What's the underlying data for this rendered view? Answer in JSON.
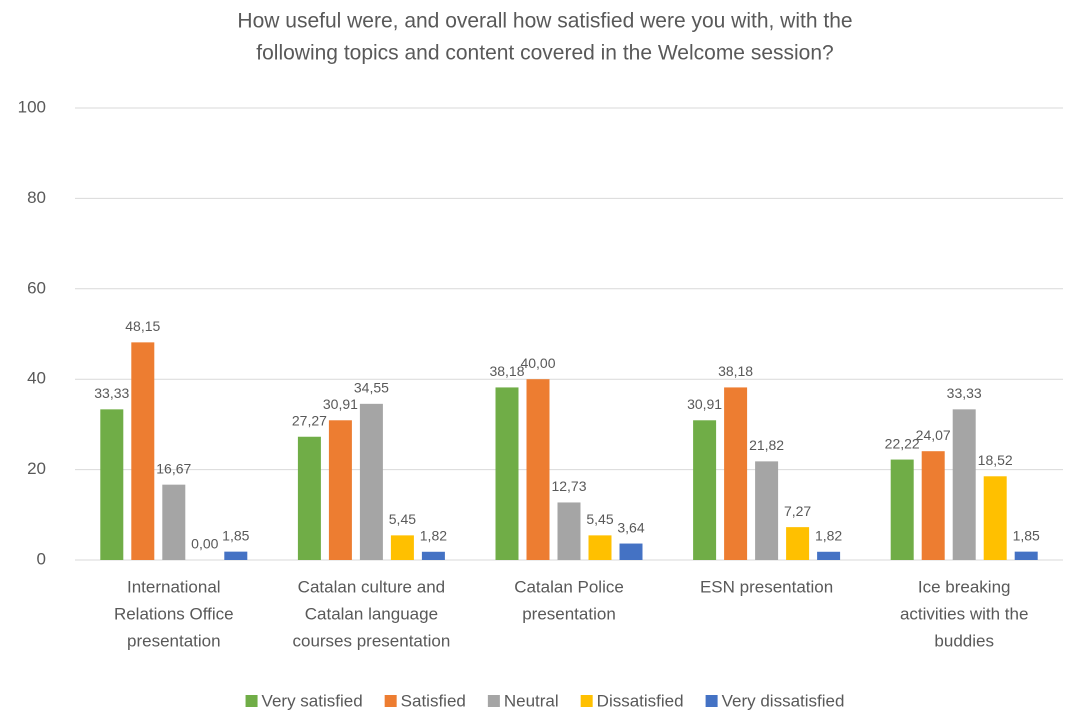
{
  "chart_data": {
    "type": "bar",
    "title": [
      "How useful were, and overall how satisfied were you with, with the",
      "following topics and content covered in the Welcome session?"
    ],
    "categories": [
      [
        "International",
        "Relations Office",
        "presentation"
      ],
      [
        "Catalan culture and",
        "Catalan language",
        "courses presentation"
      ],
      [
        "Catalan Police",
        "presentation"
      ],
      [
        "ESN presentation"
      ],
      [
        "Ice breaking",
        "activities with the",
        "buddies"
      ]
    ],
    "series": [
      {
        "name": "Very satisfied",
        "color": "#70ad47",
        "values": [
          33.33,
          27.27,
          38.18,
          30.91,
          22.22
        ],
        "value_labels": [
          "33,33",
          "27,27",
          "38,18",
          "30,91",
          "22,22"
        ]
      },
      {
        "name": "Satisfied",
        "color": "#ed7d31",
        "values": [
          48.15,
          30.91,
          40.0,
          38.18,
          24.07
        ],
        "value_labels": [
          "48,15",
          "30,91",
          "40,00",
          "38,18",
          "24,07"
        ]
      },
      {
        "name": "Neutral",
        "color": "#a5a5a5",
        "values": [
          16.67,
          34.55,
          12.73,
          21.82,
          33.33
        ],
        "value_labels": [
          "16,67",
          "34,55",
          "12,73",
          "21,82",
          "33,33"
        ]
      },
      {
        "name": "Dissatisfied",
        "color": "#ffc000",
        "values": [
          0.0,
          5.45,
          5.45,
          7.27,
          18.52
        ],
        "value_labels": [
          "0,00",
          "5,45",
          "5,45",
          "7,27",
          "18,52"
        ]
      },
      {
        "name": "Very dissatisfied",
        "color": "#4472c4",
        "values": [
          1.85,
          1.82,
          3.64,
          1.82,
          1.85
        ],
        "value_labels": [
          "1,85",
          "1,82",
          "3,64",
          "1,82",
          "1,85"
        ]
      }
    ],
    "ylim": [
      0,
      100
    ],
    "yticks": [
      0,
      20,
      40,
      60,
      80,
      100
    ],
    "grid": true,
    "legend": "bottom"
  }
}
